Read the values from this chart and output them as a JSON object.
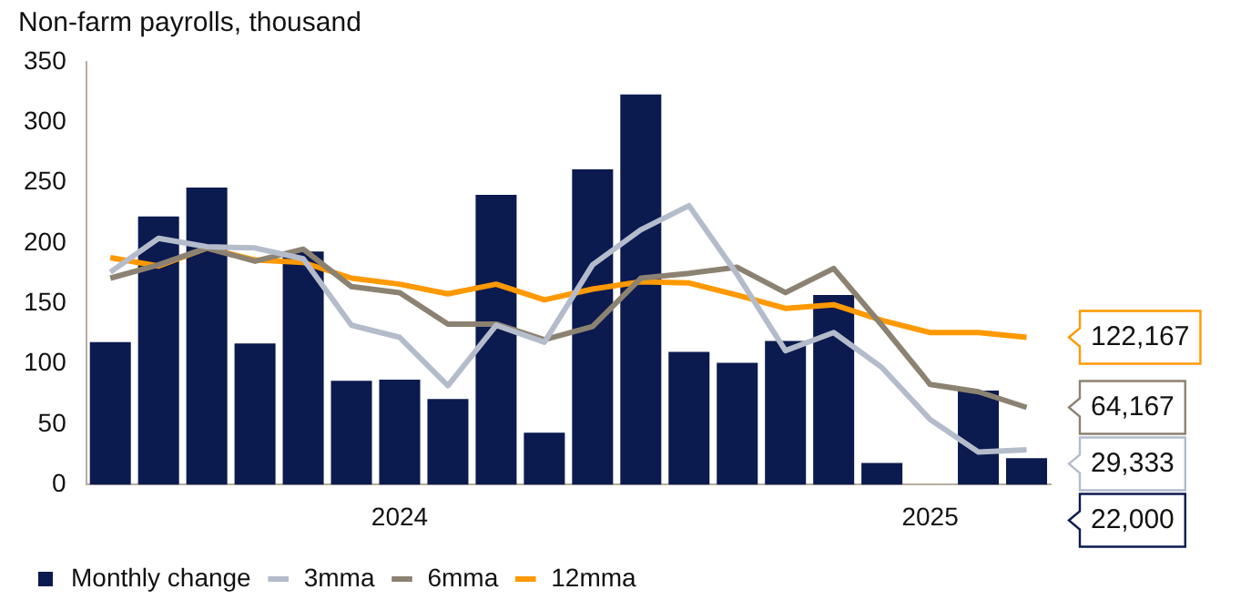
{
  "chart_data": {
    "type": "bar",
    "title": "Non-farm payrolls, thousand",
    "categories": [
      null,
      null,
      null,
      null,
      null,
      null,
      "2024",
      null,
      null,
      null,
      null,
      null,
      null,
      null,
      null,
      null,
      null,
      "2025",
      null,
      null
    ],
    "series": [
      {
        "name": "Monthly change",
        "color": "#0b1a4f",
        "values": [
          118,
          222,
          246,
          117,
          193,
          86,
          87,
          71,
          240,
          43,
          261,
          323,
          110,
          101,
          119,
          157,
          18,
          0,
          78,
          22
        ]
      },
      {
        "name": "3mma",
        "type": "line",
        "color": "#b4bccb",
        "values": [
          176,
          204,
          197,
          196,
          187,
          132,
          122,
          82,
          132,
          118,
          182,
          211,
          231,
          174,
          111,
          126,
          97,
          54,
          27,
          29
        ]
      },
      {
        "name": "6mma",
        "type": "line",
        "color": "#8c8272",
        "values": [
          171,
          182,
          196,
          185,
          195,
          164,
          159,
          133,
          133,
          120,
          131,
          171,
          175,
          180,
          159,
          179,
          132,
          83,
          77,
          64
        ]
      },
      {
        "name": "12mma",
        "type": "line",
        "color": "#ff9900",
        "values": [
          188,
          181,
          196,
          186,
          184,
          171,
          166,
          158,
          166,
          153,
          162,
          168,
          167,
          157,
          146,
          149,
          136,
          126,
          126,
          122
        ]
      }
    ],
    "ylim": [
      0,
      350
    ],
    "yticks": [
      0,
      50,
      100,
      150,
      200,
      250,
      300,
      350
    ],
    "grid": false,
    "legend": "bottom",
    "annotations": [
      "122,167",
      "64,167",
      "29,333",
      "22,000"
    ]
  }
}
